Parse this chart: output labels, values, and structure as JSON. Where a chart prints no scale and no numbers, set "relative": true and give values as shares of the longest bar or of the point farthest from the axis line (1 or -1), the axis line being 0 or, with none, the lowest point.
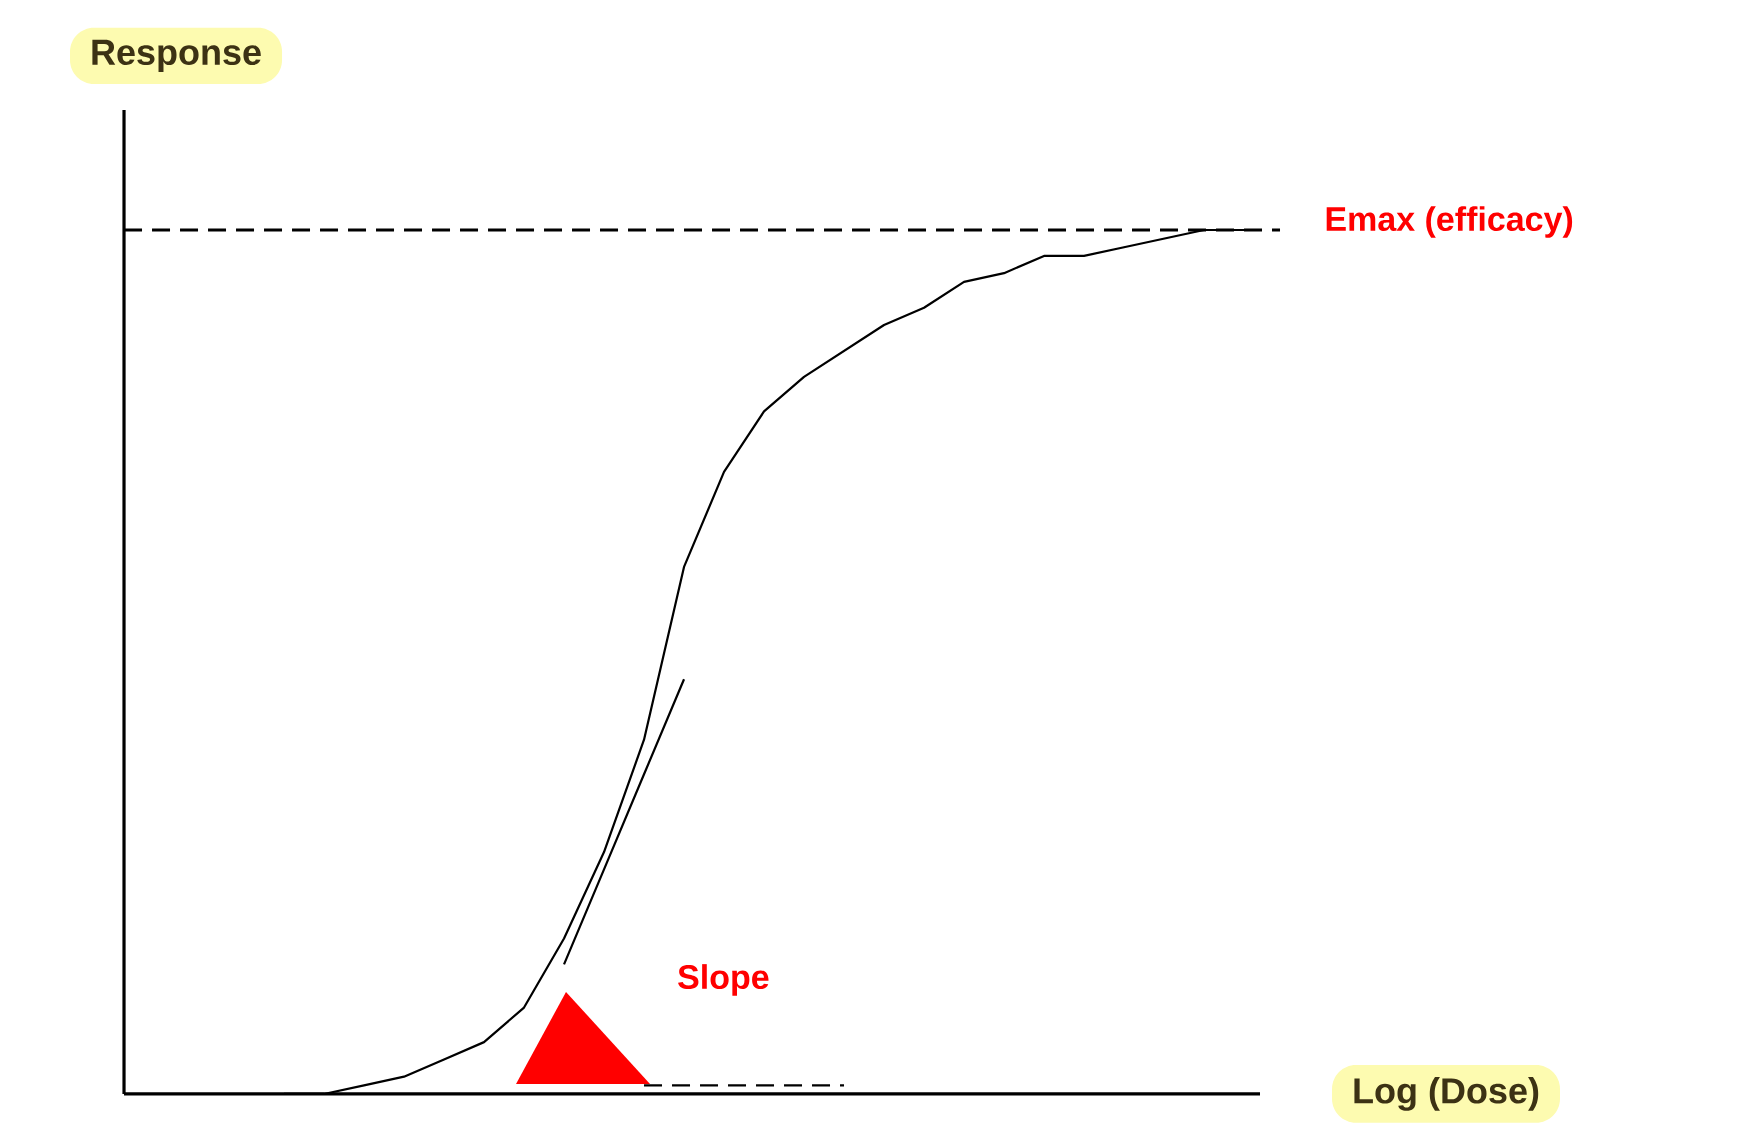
{
  "chart_data": {
    "type": "line",
    "relative": true,
    "tick_labels": false,
    "xlabel": "Log (Dose)",
    "ylabel": "Response",
    "line_style": "solid",
    "categories": [
      null,
      null,
      null,
      null,
      null,
      null,
      null,
      null,
      null,
      null,
      null,
      null,
      null,
      null,
      null,
      null,
      null,
      null,
      null,
      null,
      null,
      null,
      null,
      null,
      null,
      null,
      null,
      null,
      null
    ],
    "series": [
      {
        "color": "#000000",
        "values": [
          null,
          null,
          null,
          null,
          0,
          0,
          0.01,
          0.02,
          0.04,
          0.06,
          0.1,
          0.18,
          0.28,
          0.41,
          0.61,
          0.72,
          0.79,
          0.83,
          0.86,
          0.89,
          0.91,
          0.94,
          0.95,
          0.97,
          0.97,
          0.98,
          0.99,
          1,
          1
        ]
      },
      {
        "color": "#000000",
        "values": [
          null,
          null,
          null,
          null,
          null,
          null,
          null,
          null,
          null,
          null,
          null,
          0.15,
          0.26,
          0.37,
          0.48,
          null,
          null,
          null,
          null,
          null,
          null,
          null,
          null,
          null,
          null,
          null,
          null,
          null,
          null
        ]
      },
      {
        "color": "#000000",
        "line_style": "dashed",
        "values": [
          null,
          null,
          null,
          null,
          null,
          null,
          null,
          null,
          null,
          null,
          null,
          null,
          null,
          0.01,
          0.01,
          0.01,
          0.01,
          0.01,
          0.01,
          null,
          null,
          null,
          null,
          null,
          null,
          null,
          null,
          null,
          null
        ]
      }
    ],
    "ref_lines": [
      {
        "axis": "y",
        "value": 1,
        "label": "Emax (efficacy)",
        "line_style": "dashed",
        "color": "#000000"
      }
    ],
    "annotations": [
      "Slope"
    ]
  }
}
